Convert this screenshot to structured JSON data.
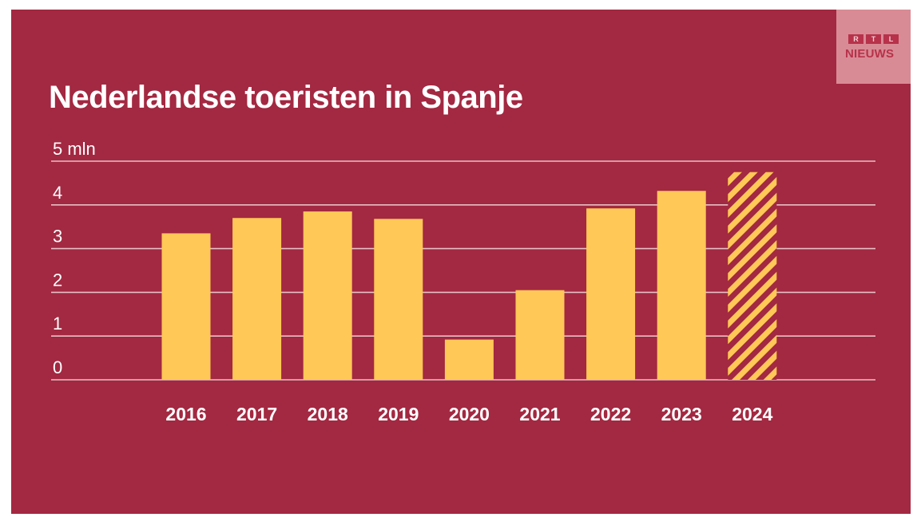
{
  "logo": {
    "boxes": [
      "R",
      "T",
      "L"
    ],
    "word": "NIEUWS"
  },
  "colors": {
    "background": "#a32841",
    "bar": "#ffc857",
    "grid": "#e8c0c6",
    "text": "#ffffff"
  },
  "chart_data": {
    "type": "bar",
    "title": "Nederlandse toeristen in Spanje",
    "xlabel": "",
    "ylabel": "",
    "ylim": [
      0,
      5
    ],
    "y_ticks": [
      0,
      1,
      2,
      3,
      4,
      5
    ],
    "y_tick_labels": [
      "0",
      "1",
      "2",
      "3",
      "4",
      "5 mln"
    ],
    "grid": true,
    "categories": [
      "2016",
      "2017",
      "2018",
      "2019",
      "2020",
      "2021",
      "2022",
      "2023",
      "2024"
    ],
    "values": [
      3.35,
      3.7,
      3.85,
      3.68,
      0.92,
      2.05,
      3.92,
      4.32,
      4.75
    ],
    "hatched": [
      false,
      false,
      false,
      false,
      false,
      false,
      false,
      false,
      true
    ]
  }
}
